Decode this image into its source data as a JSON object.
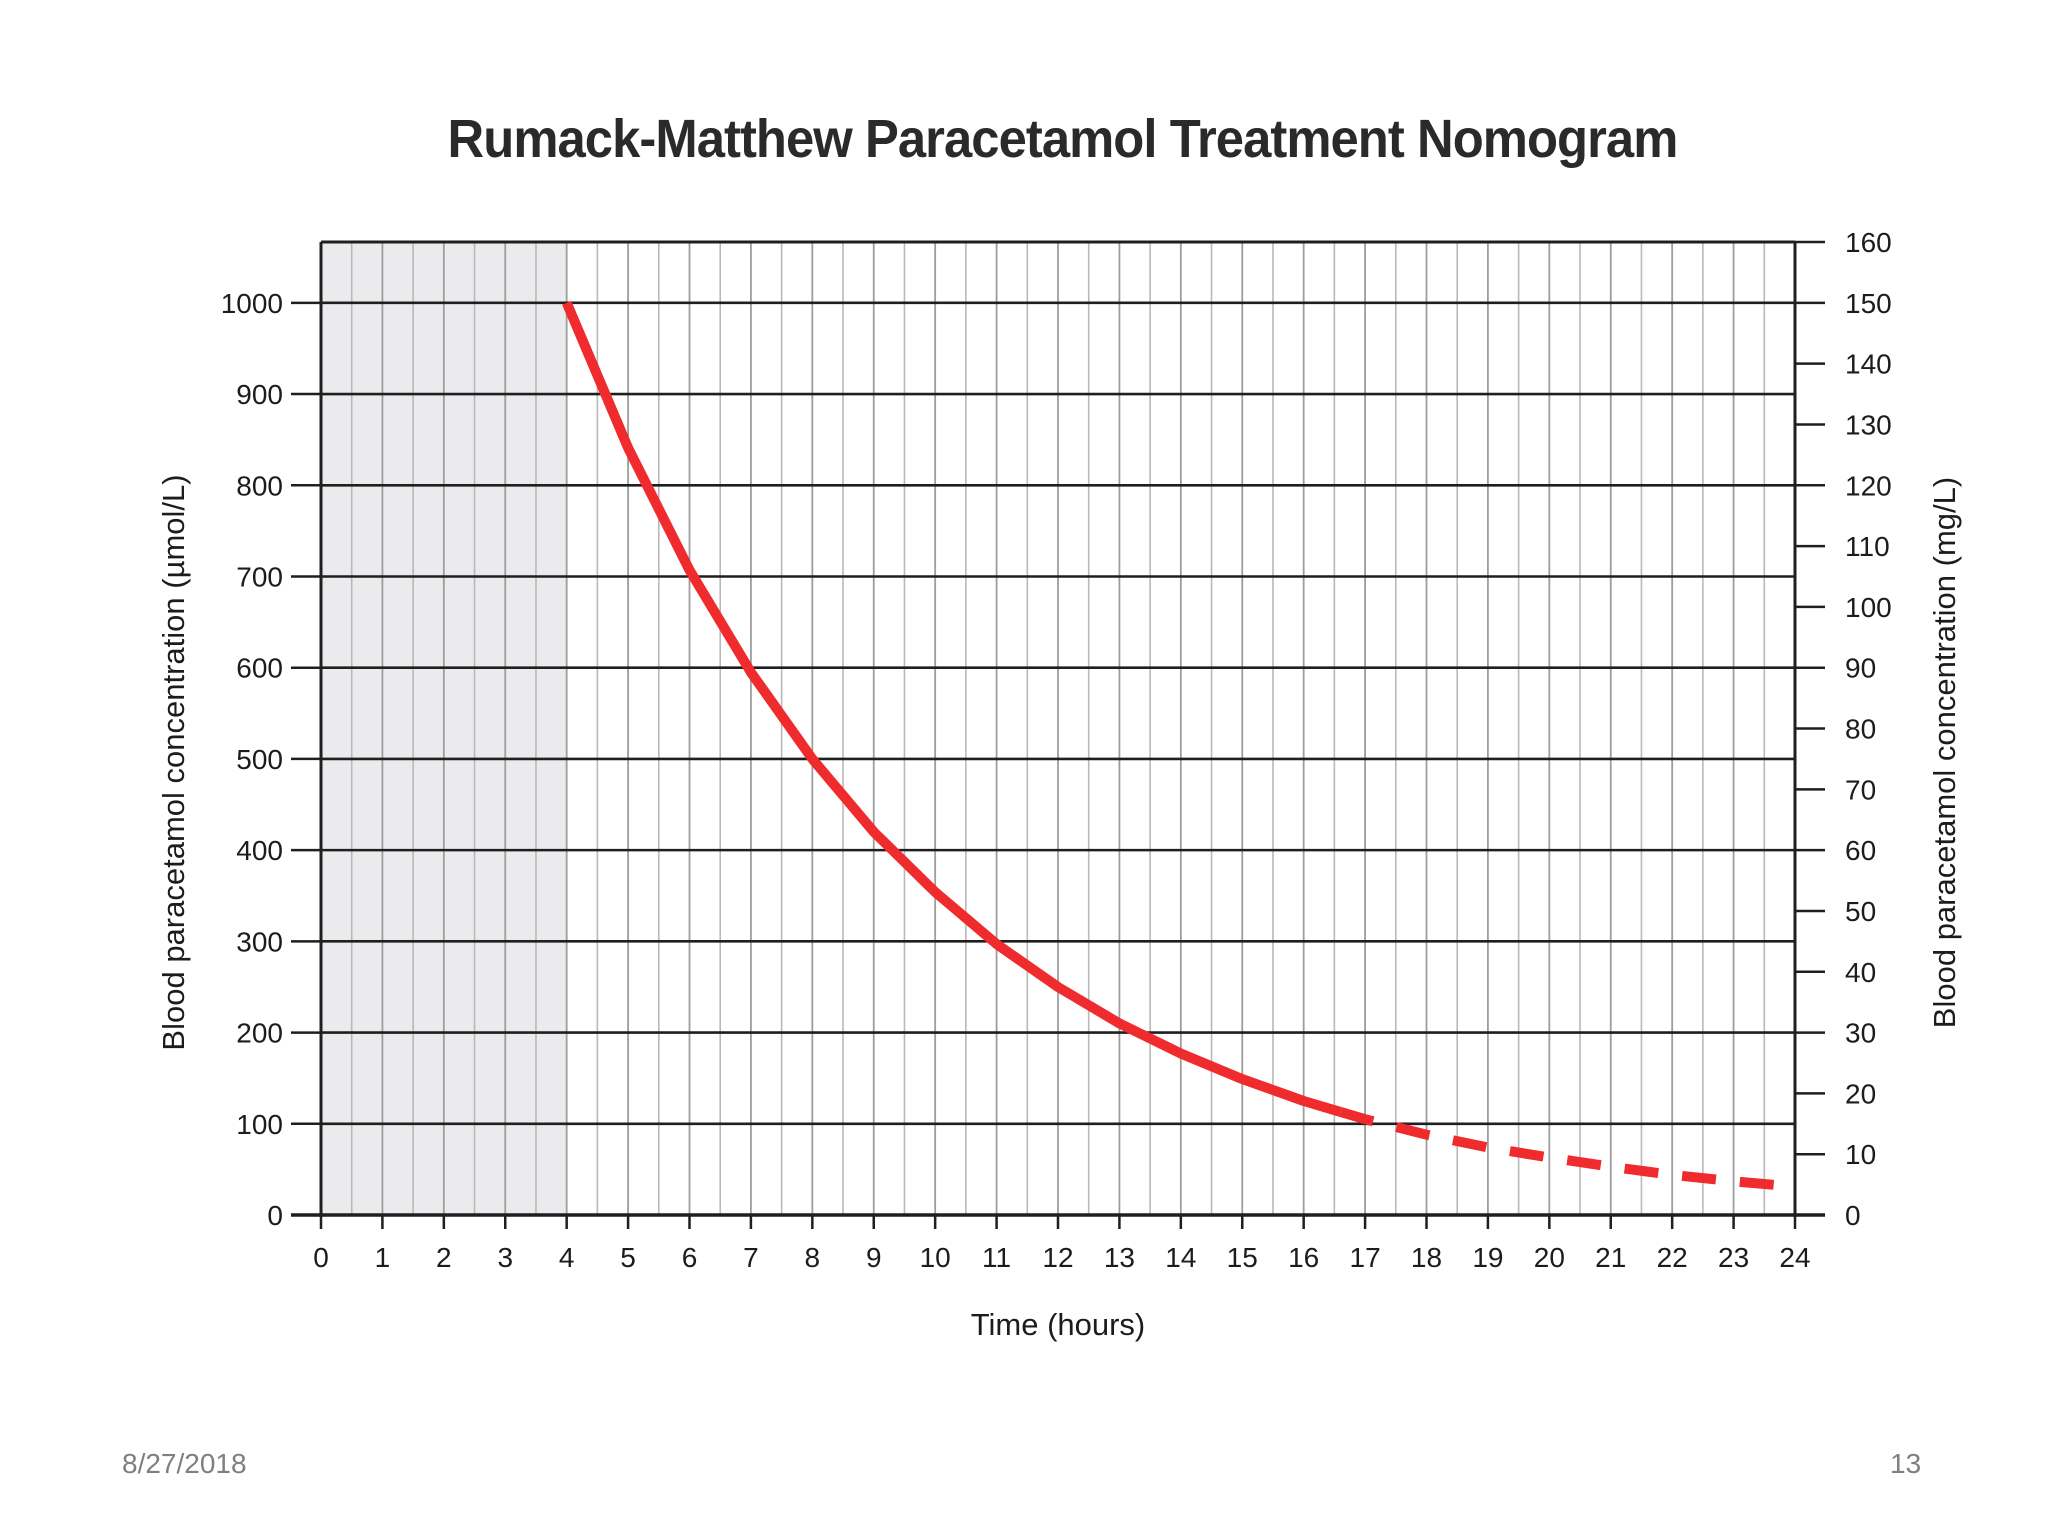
{
  "slide": {
    "title": "Rumack-Matthew Paracetamol Treatment Nomogram",
    "footer_date": "8/27/2018",
    "page_number": "13"
  },
  "colors": {
    "curve": "#ef2b2d",
    "shaded_region": "#ebebee",
    "major_grid": "#1f1f1f",
    "minor_grid": "#b9b9b9"
  },
  "chart_data": {
    "type": "line",
    "title": "Rumack-Matthew Paracetamol Treatment Nomogram",
    "xlabel": "Time (hours)",
    "ylabel_left": "Blood paracetamol concentration (µmol/L)",
    "ylabel_right": "Blood paracetamol concentration (mg/L)",
    "xlim": [
      0,
      24
    ],
    "ylim_left": [
      0,
      1066.7
    ],
    "ylim_right": [
      0,
      160
    ],
    "x_ticks": [
      0,
      1,
      2,
      3,
      4,
      5,
      6,
      7,
      8,
      9,
      10,
      11,
      12,
      13,
      14,
      15,
      16,
      17,
      18,
      19,
      20,
      21,
      22,
      23,
      24
    ],
    "x_tick_labels": [
      "0",
      "1",
      "2",
      "3",
      "4",
      "5",
      "6",
      "7",
      "8",
      "9",
      "10",
      "11",
      "12",
      "13",
      "14",
      "15",
      "16",
      "17",
      "18",
      "19",
      "20",
      "21",
      "22",
      "23",
      "24"
    ],
    "y_left_ticks": [
      0,
      100,
      200,
      300,
      400,
      500,
      600,
      700,
      800,
      900,
      1000
    ],
    "y_left_tick_labels": [
      "0",
      "100",
      "200",
      "300",
      "400",
      "500",
      "600",
      "700",
      "800",
      "900",
      "1000"
    ],
    "y_right_ticks": [
      0,
      10,
      20,
      30,
      40,
      50,
      60,
      70,
      80,
      90,
      100,
      110,
      120,
      130,
      140,
      150,
      160
    ],
    "y_right_tick_labels": [
      "0",
      "10",
      "20",
      "30",
      "40",
      "50",
      "60",
      "70",
      "80",
      "90",
      "100",
      "110",
      "120",
      "130",
      "140",
      "150",
      "160"
    ],
    "shaded_region_x": [
      0,
      4
    ],
    "grid": true,
    "series": [
      {
        "name": "treatment line",
        "style": "solid",
        "x": [
          4,
          5,
          6,
          7,
          8,
          9,
          10,
          11,
          12,
          13,
          14,
          15,
          16,
          16.6
        ],
        "y": [
          1000,
          841,
          707,
          595,
          500,
          420,
          354,
          297,
          250,
          210,
          177,
          149,
          125,
          113
        ]
      },
      {
        "name": "extrapolated treatment line",
        "style": "dashed",
        "x": [
          16.6,
          17,
          18,
          19,
          20,
          21,
          22,
          23,
          24
        ],
        "y": [
          113,
          105,
          88,
          74,
          63,
          53,
          44,
          37,
          31
        ]
      }
    ]
  }
}
